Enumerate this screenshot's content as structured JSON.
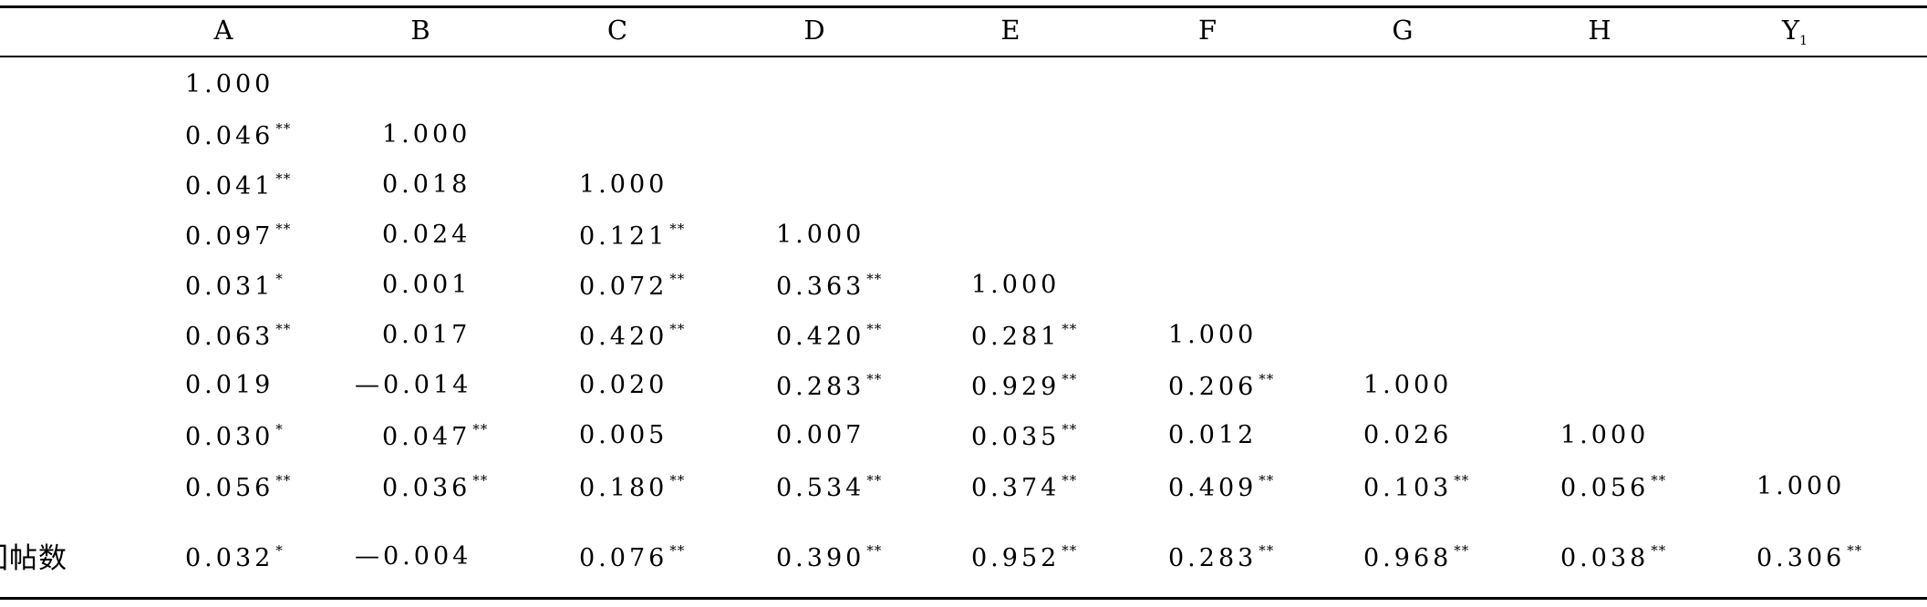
{
  "table": {
    "headers": [
      "A",
      "B",
      "C",
      "D",
      "E",
      "F",
      "G",
      "H",
      "Y"
    ],
    "header_subscript_last": "1",
    "rows": [
      {
        "label": "",
        "cells": [
          {
            "v": "1.000",
            "s": ""
          }
        ]
      },
      {
        "label": "",
        "cells": [
          {
            "v": "0.046",
            "s": "**"
          },
          {
            "v": "1.000",
            "s": ""
          }
        ]
      },
      {
        "label": "",
        "cells": [
          {
            "v": "0.041",
            "s": "**"
          },
          {
            "v": "0.018",
            "s": ""
          },
          {
            "v": "1.000",
            "s": ""
          }
        ]
      },
      {
        "label": "",
        "cells": [
          {
            "v": "0.097",
            "s": "**"
          },
          {
            "v": "0.024",
            "s": ""
          },
          {
            "v": "0.121",
            "s": "**"
          },
          {
            "v": "1.000",
            "s": ""
          }
        ]
      },
      {
        "label": "",
        "cells": [
          {
            "v": "0.031",
            "s": "*"
          },
          {
            "v": "0.001",
            "s": ""
          },
          {
            "v": "0.072",
            "s": "**"
          },
          {
            "v": "0.363",
            "s": "**"
          },
          {
            "v": "1.000",
            "s": ""
          }
        ]
      },
      {
        "label": "",
        "cells": [
          {
            "v": "0.063",
            "s": "**"
          },
          {
            "v": "0.017",
            "s": ""
          },
          {
            "v": "0.420",
            "s": "**"
          },
          {
            "v": "0.420",
            "s": "**"
          },
          {
            "v": "0.281",
            "s": "**"
          },
          {
            "v": "1.000",
            "s": ""
          }
        ]
      },
      {
        "label": "",
        "cells": [
          {
            "v": "0.019",
            "s": ""
          },
          {
            "v": "—0.014",
            "s": ""
          },
          {
            "v": "0.020",
            "s": ""
          },
          {
            "v": "0.283",
            "s": "**"
          },
          {
            "v": "0.929",
            "s": "**"
          },
          {
            "v": "0.206",
            "s": "**"
          },
          {
            "v": "1.000",
            "s": ""
          }
        ]
      },
      {
        "label": "",
        "cells": [
          {
            "v": "0.030",
            "s": "*"
          },
          {
            "v": "0.047",
            "s": "**"
          },
          {
            "v": "0.005",
            "s": ""
          },
          {
            "v": "0.007",
            "s": ""
          },
          {
            "v": "0.035",
            "s": "**"
          },
          {
            "v": "0.012",
            "s": ""
          },
          {
            "v": "0.026",
            "s": ""
          },
          {
            "v": "1.000",
            "s": ""
          }
        ]
      },
      {
        "label": "",
        "cells": [
          {
            "v": "0.056",
            "s": "**"
          },
          {
            "v": "0.036",
            "s": "**"
          },
          {
            "v": "0.180",
            "s": "**"
          },
          {
            "v": "0.534",
            "s": "**"
          },
          {
            "v": "0.374",
            "s": "**"
          },
          {
            "v": "0.409",
            "s": "**"
          },
          {
            "v": "0.103",
            "s": "**"
          },
          {
            "v": "0.056",
            "s": "**"
          },
          {
            "v": "1.000",
            "s": ""
          }
        ]
      },
      {
        "label": "回帖数",
        "cells": [
          {
            "v": "0.032",
            "s": "*"
          },
          {
            "v": "—0.004",
            "s": ""
          },
          {
            "v": "0.076",
            "s": "**"
          },
          {
            "v": "0.390",
            "s": "**"
          },
          {
            "v": "0.952",
            "s": "**"
          },
          {
            "v": "0.283",
            "s": "**"
          },
          {
            "v": "0.968",
            "s": "**"
          },
          {
            "v": "0.038",
            "s": "**"
          },
          {
            "v": "0.306",
            "s": "**"
          }
        ]
      }
    ]
  }
}
